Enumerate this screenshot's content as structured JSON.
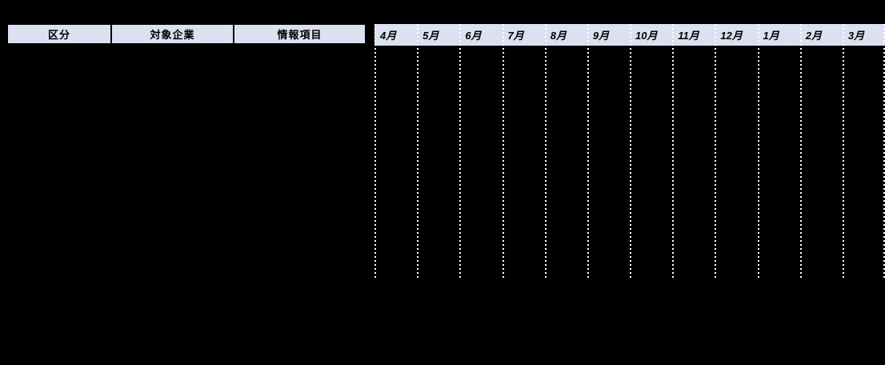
{
  "header": {
    "columns": [
      "区分",
      "対象企業",
      "情報項目"
    ]
  },
  "timeline": {
    "months": [
      "4月",
      "5月",
      "6月",
      "7月",
      "8月",
      "9月",
      "10月",
      "11月",
      "12月",
      "1月",
      "2月",
      "3月"
    ]
  },
  "chart_area": {
    "rows_empty": true
  },
  "colors": {
    "background": "#000000",
    "band_fill": "#dbe1f1",
    "grid_dots": "#ffffff",
    "text": "#000000"
  }
}
